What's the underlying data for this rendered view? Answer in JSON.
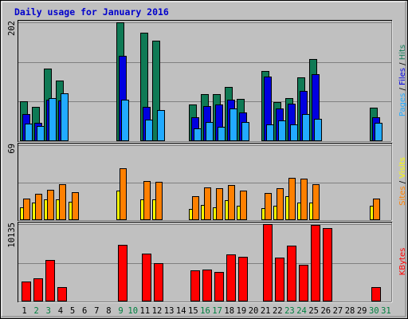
{
  "chart_data": {
    "type": "bar",
    "title": "Daily usage for January 2016",
    "days": [
      "1",
      "2",
      "3",
      "4",
      "5",
      "6",
      "7",
      "8",
      "9",
      "10",
      "11",
      "12",
      "13",
      "14",
      "15",
      "16",
      "17",
      "18",
      "19",
      "20",
      "21",
      "22",
      "23",
      "24",
      "25",
      "26",
      "27",
      "28",
      "29",
      "30",
      "31"
    ],
    "weekend_days": [
      "2",
      "3",
      "9",
      "10",
      "16",
      "17",
      "23",
      "24",
      "30",
      "31"
    ],
    "colors": {
      "background": "#c0c0c0",
      "title": "#0000cc",
      "hits": "#0f7a55",
      "files": "#0000e0",
      "pages": "#22aaff",
      "visits": "#ffff00",
      "sites": "#ff8000",
      "kbytes": "#ff0000",
      "weekday_label": "#000000",
      "weekend_label": "#008040"
    },
    "panels": [
      {
        "id": "traffic",
        "max_label": "202",
        "ymax": 202,
        "legend": [
          "Pages",
          "Files",
          "Hits"
        ],
        "series": [
          {
            "name": "Hits",
            "key": "hits",
            "values": [
              68,
              58,
              124,
              103,
              0,
              0,
              0,
              0,
              202,
              0,
              184,
              171,
              0,
              0,
              62,
              80,
              80,
              92,
              72,
              0,
              119,
              67,
              73,
              108,
              139,
              0,
              0,
              0,
              0,
              57,
              0
            ]
          },
          {
            "name": "Files",
            "key": "files",
            "values": [
              46,
              31,
              71,
              69,
              0,
              0,
              0,
              0,
              145,
              0,
              58,
              0,
              0,
              0,
              41,
              60,
              63,
              70,
              49,
              0,
              110,
              55,
              64,
              86,
              114,
              0,
              0,
              0,
              0,
              41,
              0
            ]
          },
          {
            "name": "Pages",
            "key": "pages",
            "values": [
              30,
              26,
              73,
              81,
              0,
              0,
              0,
              0,
              71,
              0,
              37,
              53,
              0,
              0,
              22,
              33,
              25,
              56,
              32,
              0,
              28,
              35,
              28,
              46,
              38,
              0,
              0,
              0,
              0,
              31,
              0
            ]
          }
        ]
      },
      {
        "id": "visitors",
        "max_label": "69",
        "ymax": 69,
        "legend": [
          "Sites",
          "Visits"
        ],
        "series": [
          {
            "name": "Visits",
            "key": "visits",
            "values": [
              12,
              16,
              19,
              19,
              17,
              0,
              0,
              0,
              27,
              0,
              19,
              19,
              0,
              0,
              10,
              14,
              12,
              18,
              13,
              0,
              11,
              13,
              22,
              16,
              16,
              0,
              0,
              0,
              0,
              13,
              0
            ]
          },
          {
            "name": "Sites",
            "key": "sites",
            "values": [
              20,
              24,
              28,
              33,
              26,
              0,
              0,
              0,
              48,
              0,
              36,
              35,
              0,
              0,
              22,
              30,
              29,
              32,
              27,
              0,
              25,
              29,
              39,
              38,
              33,
              0,
              0,
              0,
              0,
              20,
              0
            ]
          }
        ]
      },
      {
        "id": "volume",
        "max_label": "10135",
        "ymax": 10135,
        "legend": [
          "KBytes"
        ],
        "series": [
          {
            "name": "KBytes",
            "key": "kbytes",
            "values": [
              2570,
              3000,
              5400,
              1900,
              0,
              0,
              0,
              0,
              7400,
              0,
              6300,
              5000,
              0,
              0,
              4100,
              4200,
              3900,
              6200,
              5800,
              0,
              10135,
              5700,
              7300,
              4800,
              10000,
              9600,
              0,
              0,
              0,
              1900,
              0
            ]
          }
        ]
      }
    ]
  }
}
